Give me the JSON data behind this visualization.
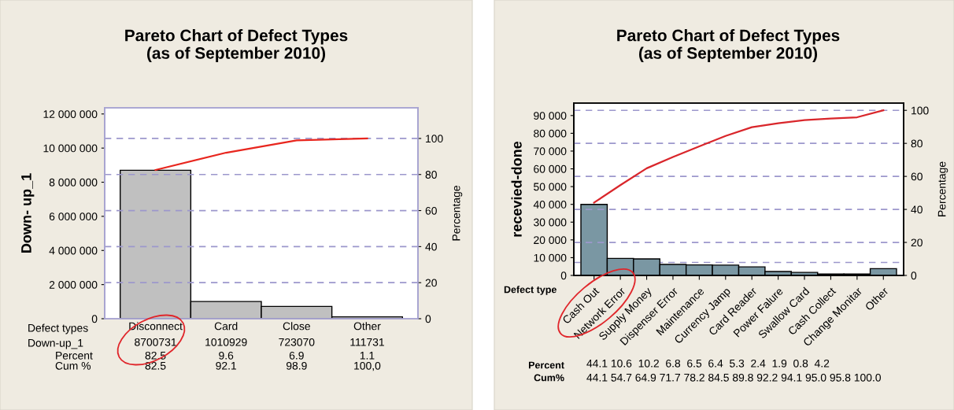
{
  "chart_data": [
    {
      "type": "bar",
      "title": "Pareto Chart of Defect Types\n(as of September 2010)",
      "ylabel": "Down- up_1",
      "y2label": "Percentage",
      "categories": [
        "Disconnect",
        "Card",
        "Close",
        "Other"
      ],
      "series": [
        {
          "color": "#c0c0c0",
          "values": [
            8700731,
            1010929,
            723070,
            111731
          ],
          "value_labels": [
            "8700731",
            "1010929",
            "723070",
            "111731"
          ]
        },
        {
          "type": "line",
          "axis": "y2",
          "color": "#e8261e",
          "values": [
            82.5,
            92.1,
            98.9,
            100.0
          ],
          "value_labels": [
            "82.5",
            "92.1",
            "98.9",
            "100,0"
          ]
        }
      ],
      "ylim": [
        0,
        12360000
      ],
      "yticks": [
        0,
        {
          "value": 2000000,
          "label": "2 000 000"
        },
        {
          "value": 4000000,
          "label": "4 000 000"
        },
        {
          "value": 6000000,
          "label": "6 000 000"
        },
        {
          "value": 8000000,
          "label": "8 000 000"
        },
        {
          "value": 10000000,
          "label": "10 000 000"
        },
        {
          "value": 12000000,
          "label": "12 000 000"
        }
      ],
      "y2lim": [
        0,
        117
      ],
      "y2ticks": [
        0,
        20,
        40,
        60,
        80,
        100
      ],
      "ref_lines": [
        {
          "axis": "y2",
          "value": 20,
          "color": "#9c97cc",
          "line_style": "dashed"
        },
        {
          "axis": "y2",
          "value": 40,
          "color": "#9c97cc",
          "line_style": "dashed"
        },
        {
          "axis": "y2",
          "value": 60,
          "color": "#9c97cc",
          "line_style": "dashed"
        },
        {
          "axis": "y2",
          "value": 80,
          "color": "#9c97cc",
          "line_style": "dashed"
        },
        {
          "axis": "y2",
          "value": 100,
          "color": "#9c97cc",
          "line_style": "dashed"
        }
      ],
      "annotations": [
        "Defect types",
        "Down-up_1",
        "Percent",
        "Cum %",
        "82.5",
        "9.6",
        "6.9",
        "1.1"
      ],
      "legend": false
    },
    {
      "type": "bar",
      "title": "Pareto Chart of Defect Types\n(as of September 2010)",
      "ylabel": "recevied-done",
      "y2label": "Percentage",
      "categories": [
        "Cash Out",
        "Network Error",
        "Supply Money",
        "Dispenser Error",
        "Maintenance",
        "Currency Jamp",
        "Card Reader",
        "Power Falure",
        "Swallow Card",
        "Cash Collect",
        "Change Monitar",
        "Other"
      ],
      "series": [
        {
          "color": "#7a97a3",
          "values": [
            40000,
            9600,
            9300,
            6200,
            5900,
            5800,
            4800,
            2200,
            1700,
            800,
            800,
            3800
          ]
        },
        {
          "type": "line",
          "axis": "y2",
          "color": "#d9262b",
          "values": [
            44.1,
            54.7,
            64.9,
            71.7,
            78.2,
            84.5,
            89.8,
            92.2,
            94.1,
            95.0,
            95.8,
            100.0
          ]
        }
      ],
      "ylim": [
        0,
        97000
      ],
      "yticks": [
        0,
        {
          "value": 10000,
          "label": "10 000"
        },
        {
          "value": 20000,
          "label": "20 000"
        },
        {
          "value": 30000,
          "label": "30 000"
        },
        {
          "value": 40000,
          "label": "40 000"
        },
        {
          "value": 50000,
          "label": "50 000"
        },
        {
          "value": 60000,
          "label": "60 000"
        },
        {
          "value": 70000,
          "label": "70 000"
        },
        {
          "value": 80000,
          "label": "80 000"
        },
        {
          "value": 90000,
          "label": "90 000"
        }
      ],
      "y2lim": [
        0,
        104.4
      ],
      "y2ticks": [
        0,
        20,
        40,
        60,
        80,
        100
      ],
      "ref_lines": [
        {
          "axis": "y",
          "value": 7300,
          "color": "#9c97cc",
          "line_style": "dashed"
        },
        {
          "axis": "y2",
          "value": 20,
          "color": "#9c97cc",
          "line_style": "dashed"
        },
        {
          "axis": "y2",
          "value": 40,
          "color": "#9c97cc",
          "line_style": "dashed"
        },
        {
          "axis": "y2",
          "value": 60,
          "color": "#9c97cc",
          "line_style": "dashed"
        },
        {
          "axis": "y2",
          "value": 80,
          "color": "#9c97cc",
          "line_style": "dashed"
        },
        {
          "axis": "y2",
          "value": 100,
          "color": "#9c97cc",
          "line_style": "dashed"
        }
      ],
      "annotations": [
        "Defect type",
        "Percent",
        "Cum%",
        "44.1 10.6  10.2  6.8  6.5  6.4  5.3  2.4  1.9  0.8  4.2",
        "44.1 54.7 64.9 71.7 78.2 84.5 89.8 92.2 94.1 95.0 95.8 100.0"
      ],
      "legend": false
    }
  ]
}
